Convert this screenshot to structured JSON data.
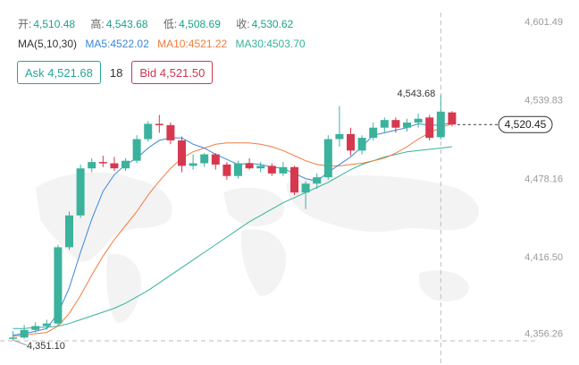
{
  "ohlc": {
    "open_label": "开:",
    "open_value": "4,510.48",
    "high_label": "高:",
    "high_value": "4,543.68",
    "low_label": "低:",
    "low_value": "4,508.69",
    "close_label": "收:",
    "close_value": "4,530.62"
  },
  "ma": {
    "header": "MA(5,10,30)",
    "ma5": "MA5:4522.02",
    "ma10": "MA10:4521.22",
    "ma30": "MA30:4503.70"
  },
  "quote": {
    "ask": "Ask 4,521.68",
    "spread": "18",
    "bid": "Bid 4,521.50"
  },
  "axis": {
    "price_labels": [
      "4,601.49",
      "4,539.83",
      "4,478.16",
      "4,416.50",
      "4,356.26"
    ],
    "current_price": "4,520.45",
    "high_annotation": "4,543.68",
    "low_annotation": "4,351.10"
  },
  "colors": {
    "up": "#3bb29c",
    "down": "#d6394f",
    "ma5": "#3a86d8",
    "ma10": "#f07b3c",
    "ma30": "#34b39a"
  },
  "chart_data": {
    "type": "candlestick",
    "ylim": [
      4351.1,
      4601.49
    ],
    "ma_lines": [
      "MA5",
      "MA10",
      "MA30"
    ],
    "candles": [
      {
        "o": 4352,
        "h": 4358,
        "l": 4351.1,
        "c": 4353
      },
      {
        "o": 4353,
        "h": 4363,
        "l": 4352,
        "c": 4359
      },
      {
        "o": 4359,
        "h": 4365,
        "l": 4357,
        "c": 4362
      },
      {
        "o": 4362,
        "h": 4367,
        "l": 4359,
        "c": 4364
      },
      {
        "o": 4364,
        "h": 4426,
        "l": 4362,
        "c": 4424
      },
      {
        "o": 4424,
        "h": 4452,
        "l": 4422,
        "c": 4449
      },
      {
        "o": 4449,
        "h": 4489,
        "l": 4447,
        "c": 4486
      },
      {
        "o": 4486,
        "h": 4494,
        "l": 4483,
        "c": 4491
      },
      {
        "o": 4491,
        "h": 4496,
        "l": 4487,
        "c": 4490
      },
      {
        "o": 4490,
        "h": 4495,
        "l": 4484,
        "c": 4486
      },
      {
        "o": 4486,
        "h": 4494,
        "l": 4484,
        "c": 4492
      },
      {
        "o": 4492,
        "h": 4512,
        "l": 4490,
        "c": 4509
      },
      {
        "o": 4509,
        "h": 4523,
        "l": 4507,
        "c": 4521
      },
      {
        "o": 4521,
        "h": 4528,
        "l": 4514,
        "c": 4520
      },
      {
        "o": 4520,
        "h": 4522,
        "l": 4505,
        "c": 4508
      },
      {
        "o": 4508,
        "h": 4511,
        "l": 4483,
        "c": 4488
      },
      {
        "o": 4488,
        "h": 4497,
        "l": 4485,
        "c": 4490
      },
      {
        "o": 4490,
        "h": 4498,
        "l": 4487,
        "c": 4497
      },
      {
        "o": 4497,
        "h": 4498,
        "l": 4485,
        "c": 4489
      },
      {
        "o": 4489,
        "h": 4491,
        "l": 4477,
        "c": 4480
      },
      {
        "o": 4480,
        "h": 4492,
        "l": 4478,
        "c": 4490
      },
      {
        "o": 4490,
        "h": 4494,
        "l": 4485,
        "c": 4486
      },
      {
        "o": 4486,
        "h": 4491,
        "l": 4483,
        "c": 4488
      },
      {
        "o": 4488,
        "h": 4490,
        "l": 4480,
        "c": 4482
      },
      {
        "o": 4482,
        "h": 4491,
        "l": 4480,
        "c": 4487
      },
      {
        "o": 4487,
        "h": 4488,
        "l": 4465,
        "c": 4467
      },
      {
        "o": 4467,
        "h": 4476,
        "l": 4454,
        "c": 4474
      },
      {
        "o": 4474,
        "h": 4482,
        "l": 4470,
        "c": 4479
      },
      {
        "o": 4479,
        "h": 4512,
        "l": 4477,
        "c": 4509
      },
      {
        "o": 4509,
        "h": 4535,
        "l": 4503,
        "c": 4513
      },
      {
        "o": 4513,
        "h": 4518,
        "l": 4496,
        "c": 4500
      },
      {
        "o": 4500,
        "h": 4512,
        "l": 4497,
        "c": 4510
      },
      {
        "o": 4510,
        "h": 4522,
        "l": 4508,
        "c": 4518
      },
      {
        "o": 4518,
        "h": 4526,
        "l": 4514,
        "c": 4524
      },
      {
        "o": 4524,
        "h": 4526,
        "l": 4514,
        "c": 4518
      },
      {
        "o": 4518,
        "h": 4525,
        "l": 4515,
        "c": 4522
      },
      {
        "o": 4522,
        "h": 4529,
        "l": 4518,
        "c": 4525
      },
      {
        "o": 4526,
        "h": 4528,
        "l": 4508,
        "c": 4510
      },
      {
        "o": 4510.48,
        "h": 4543.68,
        "l": 4508.69,
        "c": 4530.62
      },
      {
        "o": 4530,
        "h": 4531,
        "l": 4519,
        "c": 4520.45
      }
    ],
    "ma5": [
      4355,
      4356,
      4358,
      4360,
      4372,
      4392,
      4420,
      4446,
      4468,
      4481,
      4489,
      4494,
      4502,
      4508,
      4510,
      4510,
      4505,
      4502,
      4497,
      4493,
      4489,
      4490,
      4489,
      4487,
      4486,
      4482,
      4478,
      4476,
      4483,
      4489,
      4495,
      4503,
      4512,
      4514,
      4516,
      4518,
      4521,
      4520,
      4520,
      4522
    ],
    "ma10": [
      4354,
      4355,
      4356,
      4357,
      4362,
      4372,
      4386,
      4402,
      4417,
      4430,
      4441,
      4452,
      4465,
      4476,
      4486,
      4494,
      4499,
      4502,
      4505,
      4506,
      4506,
      4506,
      4505,
      4503,
      4500,
      4496,
      4492,
      4489,
      4488,
      4488,
      4489,
      4490,
      4492,
      4494,
      4498,
      4503,
      4509,
      4514,
      4518,
      4521
    ],
    "ma30": [
      4360,
      4360,
      4361,
      4361,
      4362,
      4364,
      4367,
      4370,
      4373,
      4376,
      4380,
      4385,
      4390,
      4396,
      4402,
      4408,
      4414,
      4420,
      4426,
      4432,
      4438,
      4444,
      4449,
      4454,
      4459,
      4463,
      4467,
      4471,
      4475,
      4480,
      4485,
      4489,
      4492,
      4495,
      4497,
      4499,
      4500,
      4501,
      4502,
      4503
    ]
  }
}
